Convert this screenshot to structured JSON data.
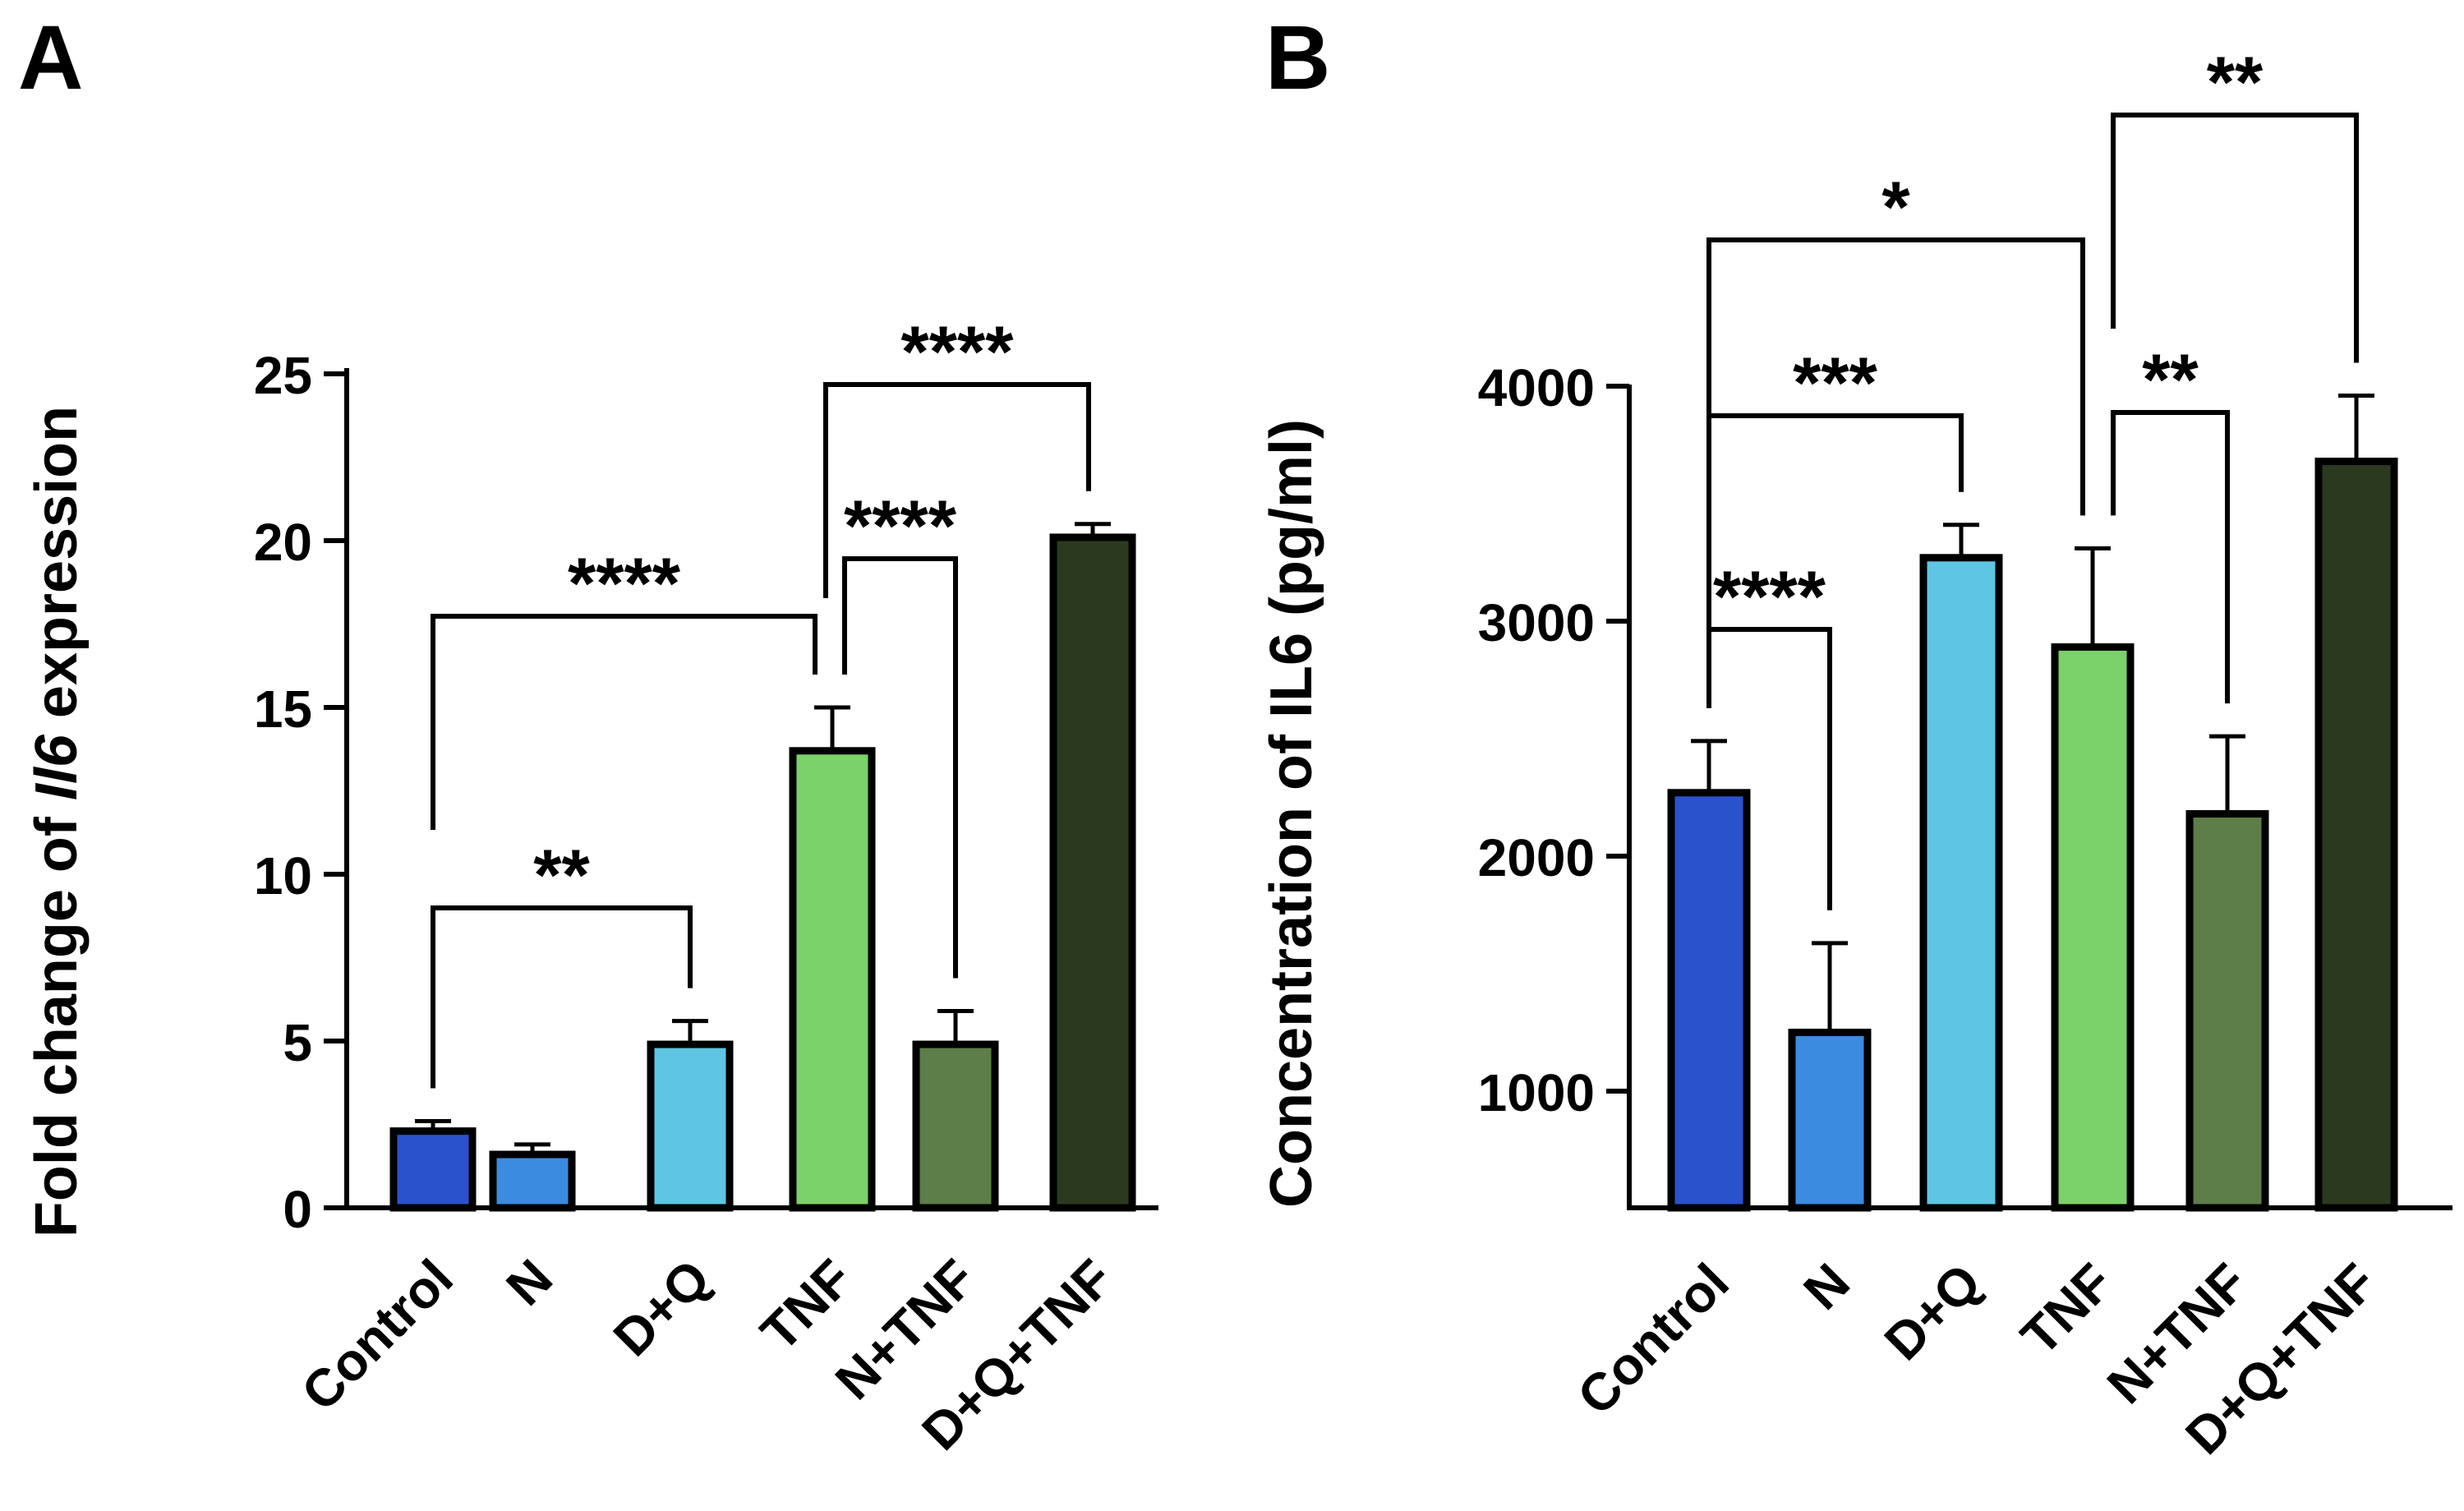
{
  "chart_data": [
    {
      "type": "bar",
      "panel_label": "A",
      "ylabel_prefix": "Fold change of ",
      "ylabel_gene": "Il6",
      "ylabel_suffix": " expression",
      "xlabel": "",
      "ylim": [
        0,
        25
      ],
      "yticks": [
        "0",
        "5",
        "10",
        "15",
        "20",
        "25"
      ],
      "categories": [
        "Control",
        "N",
        "D+Q",
        "TNF",
        "N+TNF",
        "D+Q+TNF"
      ],
      "values": [
        2.3,
        1.6,
        4.9,
        13.7,
        4.9,
        20.1
      ],
      "errors": [
        0.3,
        0.3,
        0.7,
        1.3,
        1.0,
        0.4
      ],
      "colors": [
        "#2a52cc",
        "#3b8be0",
        "#5ec6e2",
        "#7bd16a",
        "#5d7d49",
        "#2b3a1f"
      ],
      "comparisons": [
        {
          "from": 0,
          "to": 2,
          "label": "**"
        },
        {
          "from": 0,
          "to": 3,
          "label": "****"
        },
        {
          "from": 3,
          "to": 4,
          "label": "****"
        },
        {
          "from": 3,
          "to": 5,
          "label": "****"
        }
      ]
    },
    {
      "type": "bar",
      "panel_label": "B",
      "ylabel": "Concentration of IL6 (pg/ml)",
      "xlabel": "",
      "ylim": [
        500,
        4000
      ],
      "yticks": [
        "1000",
        "2000",
        "3000",
        "4000"
      ],
      "categories": [
        "Control",
        "N",
        "D+Q",
        "TNF",
        "N+TNF",
        "D+Q+TNF"
      ],
      "values": [
        2270,
        1250,
        3270,
        2890,
        2180,
        3680
      ],
      "errors": [
        220,
        380,
        140,
        420,
        330,
        280
      ],
      "colors": [
        "#2a52cc",
        "#3b8be0",
        "#5ec6e2",
        "#7bd16a",
        "#5d7d49",
        "#2b3a1f"
      ],
      "comparisons": [
        {
          "from": 0,
          "to": 1,
          "label": "****"
        },
        {
          "from": 0,
          "to": 2,
          "label": "***"
        },
        {
          "from": 0,
          "to": 3,
          "label": "*"
        },
        {
          "from": 3,
          "to": 4,
          "label": "**"
        },
        {
          "from": 3,
          "to": 5,
          "label": "**"
        }
      ]
    }
  ]
}
